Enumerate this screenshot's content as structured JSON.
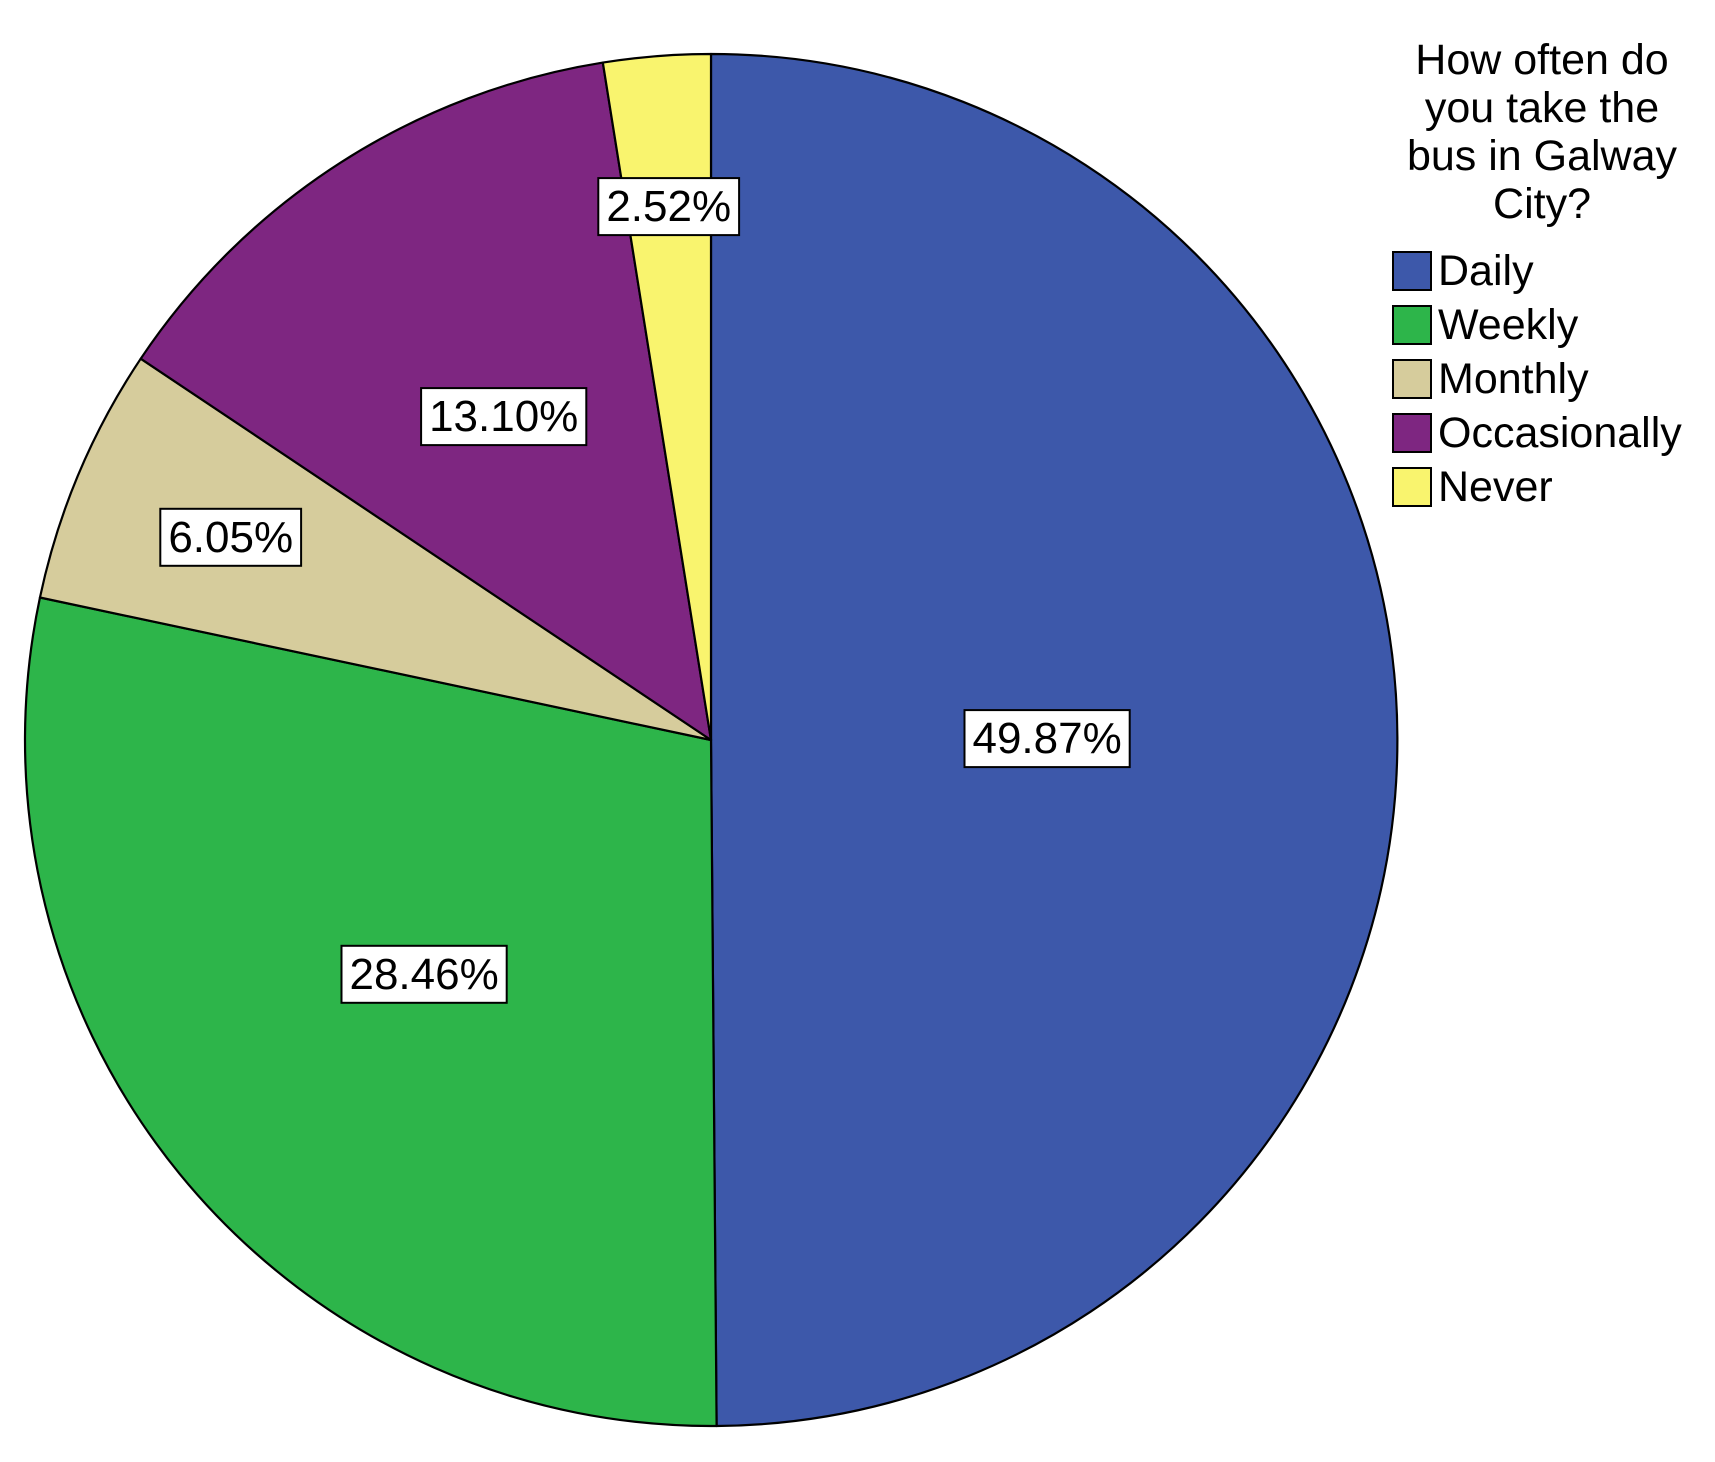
{
  "chart_data": {
    "type": "pie",
    "start_angle": "12 o'clock",
    "direction": "clockwise",
    "legend": {
      "title": "How often do you take the bus in Galway City?",
      "title_lines": [
        "How often do",
        "you take the",
        "bus in Galway",
        "City?"
      ],
      "placement": "top-right"
    },
    "slices": [
      {
        "label": "Daily",
        "value": 49.87,
        "display": "49.87%",
        "color": "#3D58AA"
      },
      {
        "label": "Weekly",
        "value": 28.46,
        "display": "28.46%",
        "color": "#2DB54A"
      },
      {
        "label": "Monthly",
        "value": 6.05,
        "display": "6.05%",
        "color": "#D6CC9C"
      },
      {
        "label": "Occasionally",
        "value": 13.1,
        "display": "13.10%",
        "color": "#7E2681"
      },
      {
        "label": "Never",
        "value": 2.52,
        "display": "2.52%",
        "color": "#F9F46E"
      }
    ]
  }
}
